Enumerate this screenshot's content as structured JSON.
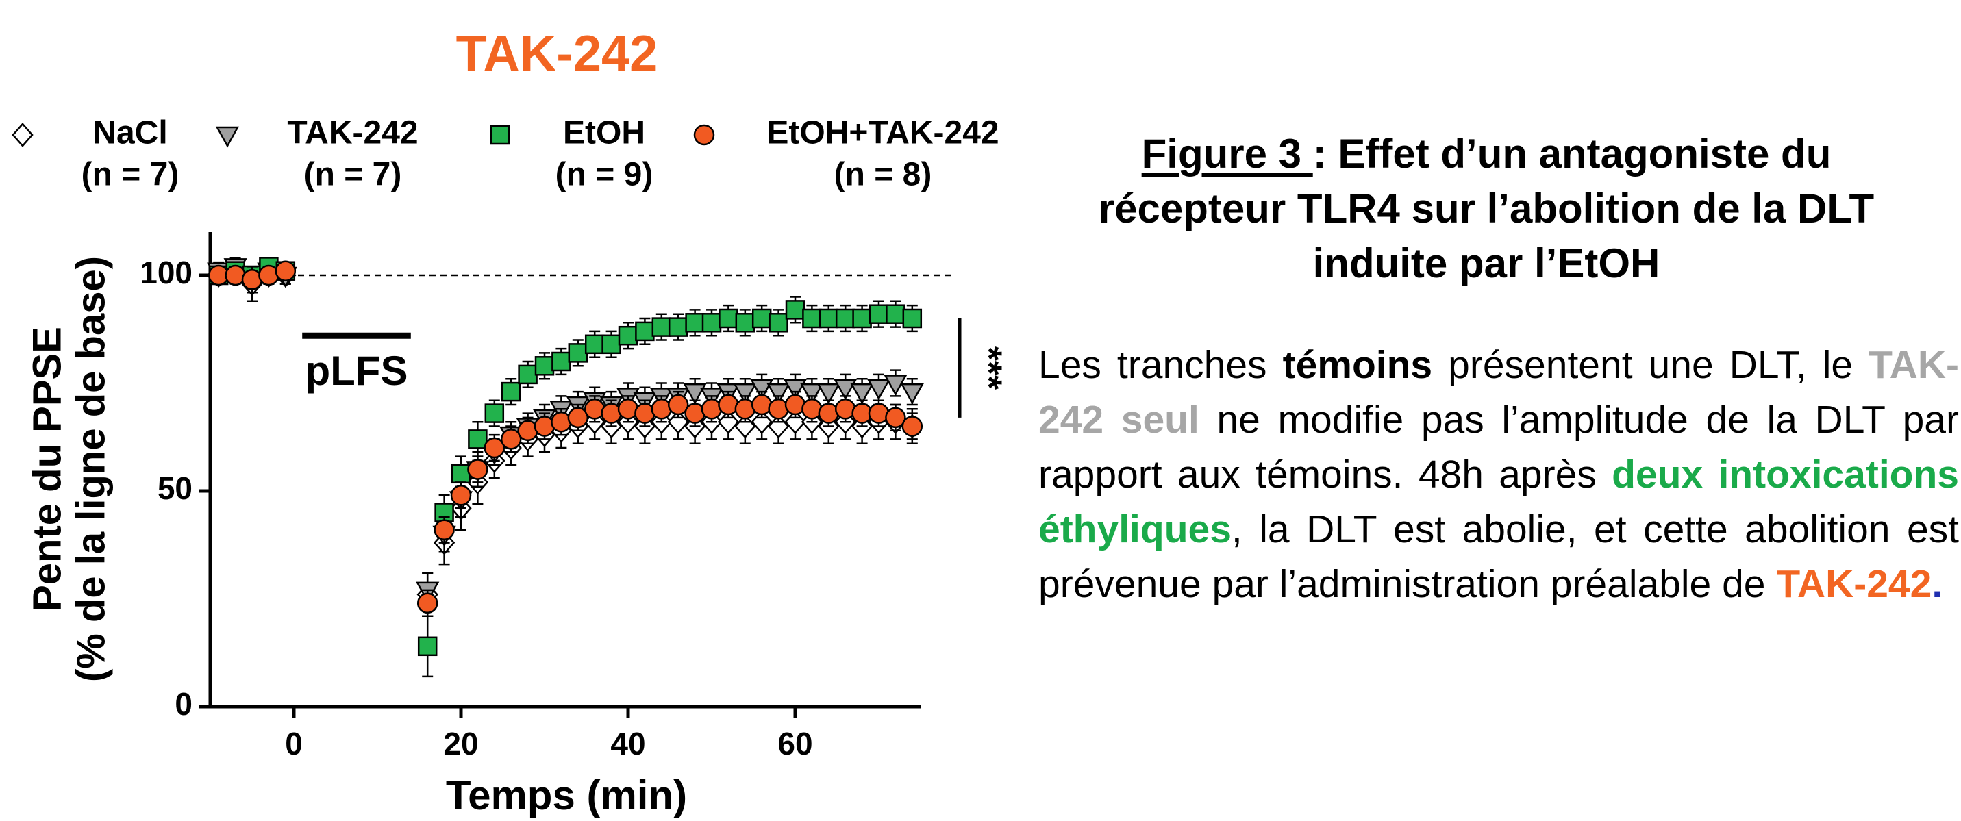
{
  "chart_data": {
    "type": "scatter",
    "title": "TAK-242",
    "title_color": "#f26522",
    "xlabel": "Temps (min)",
    "ylabel": [
      "Pente du PPSE",
      "(% de la ligne de base)"
    ],
    "xlim": [
      -10,
      75
    ],
    "ylim": [
      0,
      110
    ],
    "xticks": [
      0,
      20,
      40,
      60
    ],
    "yticks": [
      0,
      50,
      100
    ],
    "reference_line": 100,
    "stimulus": {
      "label": "pLFS",
      "start": 1,
      "end": 14,
      "y": 86
    },
    "significance": {
      "label": "***",
      "from": 90,
      "to": 67
    },
    "x": [
      -9,
      -7,
      -5,
      -3,
      -1,
      16,
      18,
      20,
      22,
      24,
      26,
      28,
      30,
      32,
      34,
      36,
      38,
      40,
      42,
      44,
      46,
      48,
      50,
      52,
      54,
      56,
      58,
      60,
      62,
      64,
      66,
      68,
      70,
      72,
      74
    ],
    "series": [
      {
        "name": "NaCl",
        "n_label": "(n = 7)",
        "marker": "diamond",
        "color": "#ffffff",
        "values": [
          100,
          101,
          98,
          100,
          100,
          26,
          38,
          46,
          52,
          57,
          60,
          62,
          63,
          64,
          65,
          66,
          65,
          66,
          65,
          66,
          66,
          65,
          66,
          66,
          65,
          66,
          65,
          66,
          66,
          65,
          66,
          65,
          66,
          66,
          65
        ],
        "errors": [
          2,
          2,
          4,
          2,
          2,
          5,
          5,
          5,
          5,
          4,
          4,
          4,
          4,
          4,
          4,
          4,
          4,
          4,
          4,
          4,
          4,
          4,
          4,
          4,
          4,
          4,
          4,
          4,
          4,
          4,
          4,
          4,
          4,
          4,
          4
        ]
      },
      {
        "name": "TAK-242",
        "n_label": "(n = 7)",
        "marker": "triangle",
        "color": "#a0a0a0",
        "values": [
          101,
          102,
          99,
          101,
          100,
          27,
          40,
          48,
          55,
          59,
          63,
          65,
          67,
          69,
          70,
          71,
          70,
          72,
          71,
          72,
          72,
          73,
          72,
          73,
          73,
          74,
          73,
          74,
          73,
          73,
          74,
          73,
          74,
          75,
          73
        ],
        "errors": [
          2,
          2,
          3,
          2,
          2,
          4,
          4,
          4,
          4,
          3,
          3,
          3,
          3,
          3,
          3,
          3,
          3,
          3,
          3,
          3,
          3,
          3,
          3,
          3,
          3,
          3,
          3,
          3,
          3,
          3,
          3,
          3,
          3,
          3,
          3
        ]
      },
      {
        "name": "EtOH",
        "n_label": "(n = 9)",
        "marker": "square",
        "color": "#22b24c",
        "values": [
          100,
          101,
          100,
          102,
          101,
          14,
          45,
          54,
          62,
          68,
          73,
          77,
          79,
          80,
          82,
          84,
          84,
          86,
          87,
          88,
          88,
          89,
          89,
          90,
          89,
          90,
          89,
          92,
          90,
          90,
          90,
          90,
          91,
          91,
          90
        ],
        "errors": [
          2,
          2,
          2,
          2,
          2,
          7,
          4,
          4,
          4,
          3,
          3,
          3,
          3,
          3,
          3,
          3,
          3,
          3,
          3,
          3,
          3,
          3,
          3,
          3,
          3,
          3,
          3,
          3,
          3,
          3,
          3,
          3,
          3,
          3,
          3
        ]
      },
      {
        "name": "EtOH+TAK-242",
        "n_label": "(n = 8)",
        "marker": "circle",
        "color": "#f15a22",
        "values": [
          100,
          100,
          99,
          100,
          101,
          24,
          41,
          49,
          55,
          60,
          62,
          64,
          65,
          66,
          67,
          69,
          68,
          69,
          68,
          69,
          70,
          68,
          69,
          70,
          69,
          70,
          69,
          70,
          69,
          68,
          69,
          68,
          68,
          67,
          65
        ],
        "errors": [
          2,
          2,
          3,
          2,
          2,
          3,
          3,
          3,
          3,
          3,
          3,
          3,
          3,
          3,
          3,
          3,
          3,
          3,
          3,
          3,
          3,
          3,
          3,
          3,
          3,
          3,
          3,
          3,
          3,
          3,
          3,
          3,
          3,
          3,
          3
        ]
      }
    ]
  },
  "caption": {
    "figure_label": "Figure 3 ",
    "title": ": Effet d’un antagoniste du récepteur TLR4 sur l’abolition de la DLT induite par l’EtOH",
    "body": [
      {
        "text": "Les tranches ",
        "bold": false,
        "color": "#000000"
      },
      {
        "text": "témoins",
        "bold": true,
        "color": "#000000"
      },
      {
        "text": " présentent une DLT, le ",
        "bold": false,
        "color": "#000000"
      },
      {
        "text": "TAK-242 seul",
        "bold": true,
        "color": "#a6a6a6"
      },
      {
        "text": " ne modifie pas l’amplitude de la DLT par rapport aux témoins. 48h après ",
        "bold": false,
        "color": "#000000"
      },
      {
        "text": "deux intoxications éthyliques",
        "bold": true,
        "color": "#1aaa4a"
      },
      {
        "text": ", la DLT est abolie, et cette abolition est prévenue par l’administration préalable de ",
        "bold": false,
        "color": "#000000"
      },
      {
        "text": "TAK-242",
        "bold": true,
        "color": "#f26522"
      },
      {
        "text": ".",
        "bold": true,
        "color": "#1f2fb0"
      }
    ]
  }
}
